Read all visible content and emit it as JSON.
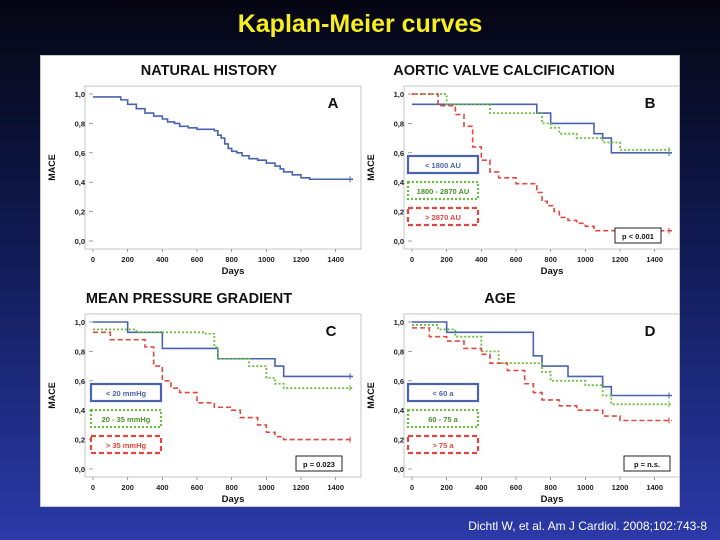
{
  "slide": {
    "title": "Kaplan-Meier curves",
    "citation": "Dichtl W, et al. Am J Cardiol. 2008;102:743-8"
  },
  "axis": {
    "xlabel": "Days",
    "ylabel": "MACE",
    "xticks": [
      "0",
      "200",
      "400",
      "600",
      "800",
      "1000",
      "1200",
      "1400"
    ],
    "yticks": [
      "0,0",
      "0,2",
      "0,4",
      "0,6",
      "0,8",
      "1,0"
    ]
  },
  "colors": {
    "blue": "#4a63b0",
    "green": "#6cbf3c",
    "red": "#e2463f",
    "black": "#333333"
  },
  "chart_data": [
    {
      "type": "line",
      "title": "NATURAL HISTORY",
      "panel_letter": "A",
      "xlabel": "Days",
      "ylabel": "MACE",
      "xlim": [
        0,
        1500
      ],
      "ylim": [
        0,
        1
      ],
      "series": [
        {
          "color": "blue",
          "x": [
            0,
            100,
            160,
            200,
            250,
            300,
            350,
            400,
            430,
            470,
            500,
            550,
            600,
            650,
            700,
            720,
            740,
            760,
            780,
            800,
            830,
            860,
            900,
            950,
            1000,
            1050,
            1080,
            1100,
            1150,
            1200,
            1250,
            1300,
            1350,
            1400,
            1450,
            1500
          ],
          "y": [
            0.98,
            0.98,
            0.96,
            0.93,
            0.9,
            0.87,
            0.85,
            0.83,
            0.81,
            0.8,
            0.78,
            0.77,
            0.76,
            0.76,
            0.75,
            0.72,
            0.7,
            0.66,
            0.63,
            0.61,
            0.6,
            0.58,
            0.56,
            0.55,
            0.53,
            0.51,
            0.49,
            0.47,
            0.45,
            0.43,
            0.42,
            0.42,
            0.42,
            0.42,
            0.42,
            0.42
          ]
        }
      ]
    },
    {
      "type": "line",
      "title": "AORTIC VALVE CALCIFICATION",
      "panel_letter": "B",
      "xlabel": "Days",
      "ylabel": "MACE",
      "xlim": [
        0,
        1500
      ],
      "ylim": [
        0,
        1
      ],
      "p_label": "p < 0.001",
      "series": [
        {
          "name": "< 1800 AU",
          "color": "blue",
          "x": [
            0,
            700,
            720,
            800,
            850,
            1000,
            1050,
            1100,
            1150,
            1500
          ],
          "y": [
            0.93,
            0.93,
            0.87,
            0.8,
            0.8,
            0.8,
            0.73,
            0.7,
            0.6,
            0.6
          ]
        },
        {
          "name": "1800 - 2870 AU",
          "color": "green",
          "x": [
            0,
            150,
            200,
            300,
            400,
            450,
            700,
            750,
            800,
            850,
            950,
            1100,
            1200,
            1500
          ],
          "y": [
            1.0,
            1.0,
            0.93,
            0.93,
            0.93,
            0.87,
            0.87,
            0.8,
            0.77,
            0.73,
            0.7,
            0.67,
            0.62,
            0.62
          ]
        },
        {
          "name": "> 2870 AU",
          "color": "red",
          "x": [
            0,
            100,
            150,
            250,
            300,
            350,
            400,
            450,
            500,
            600,
            700,
            720,
            750,
            780,
            820,
            850,
            900,
            950,
            1000,
            1050,
            1100,
            1500
          ],
          "y": [
            1.0,
            1.0,
            0.92,
            0.86,
            0.78,
            0.64,
            0.55,
            0.47,
            0.43,
            0.39,
            0.39,
            0.33,
            0.27,
            0.24,
            0.2,
            0.16,
            0.14,
            0.12,
            0.1,
            0.07,
            0.07,
            0.07
          ]
        }
      ]
    },
    {
      "type": "line",
      "title": "MEAN PRESSURE GRADIENT",
      "panel_letter": "C",
      "xlabel": "Days",
      "ylabel": "MACE",
      "xlim": [
        0,
        1500
      ],
      "ylim": [
        0,
        1
      ],
      "p_label": "p = 0.023",
      "series": [
        {
          "name": "< 20 mmHg",
          "color": "blue",
          "x": [
            0,
            150,
            200,
            400,
            700,
            720,
            900,
            1050,
            1100,
            1500
          ],
          "y": [
            1.0,
            1.0,
            0.93,
            0.82,
            0.82,
            0.75,
            0.75,
            0.7,
            0.63,
            0.63
          ]
        },
        {
          "name": "20 - 35 mmHg",
          "color": "green",
          "x": [
            0,
            250,
            400,
            650,
            700,
            720,
            900,
            1000,
            1050,
            1100,
            1200,
            1500
          ],
          "y": [
            0.95,
            0.93,
            0.93,
            0.92,
            0.83,
            0.75,
            0.7,
            0.62,
            0.58,
            0.55,
            0.55,
            0.55
          ]
        },
        {
          "name": "> 35 mmHg",
          "color": "red",
          "x": [
            0,
            100,
            200,
            300,
            350,
            400,
            450,
            500,
            600,
            700,
            800,
            850,
            950,
            1000,
            1050,
            1100,
            1200,
            1500
          ],
          "y": [
            0.93,
            0.88,
            0.88,
            0.83,
            0.7,
            0.6,
            0.55,
            0.52,
            0.45,
            0.42,
            0.4,
            0.35,
            0.3,
            0.25,
            0.22,
            0.2,
            0.2,
            0.2
          ]
        }
      ]
    },
    {
      "type": "line",
      "title": "AGE",
      "panel_letter": "D",
      "xlabel": "Days",
      "ylabel": "MACE",
      "xlim": [
        0,
        1500
      ],
      "ylim": [
        0,
        1
      ],
      "p_label": "p = n.s.",
      "series": [
        {
          "name": "< 60 a",
          "color": "blue",
          "x": [
            0,
            100,
            200,
            350,
            650,
            700,
            750,
            900,
            1100,
            1150,
            1500
          ],
          "y": [
            1.0,
            1.0,
            0.93,
            0.93,
            0.93,
            0.77,
            0.7,
            0.63,
            0.56,
            0.5,
            0.5
          ]
        },
        {
          "name": "60 - 75 a",
          "color": "green",
          "x": [
            0,
            150,
            250,
            400,
            500,
            700,
            750,
            800,
            1000,
            1100,
            1150,
            1500
          ],
          "y": [
            0.98,
            0.95,
            0.9,
            0.8,
            0.72,
            0.72,
            0.66,
            0.6,
            0.57,
            0.5,
            0.44,
            0.44
          ]
        },
        {
          "name": "> 75 a",
          "color": "red",
          "x": [
            0,
            100,
            200,
            300,
            400,
            450,
            550,
            650,
            700,
            750,
            850,
            950,
            1100,
            1200,
            1500
          ],
          "y": [
            0.96,
            0.9,
            0.87,
            0.82,
            0.78,
            0.72,
            0.67,
            0.58,
            0.52,
            0.47,
            0.43,
            0.4,
            0.36,
            0.33,
            0.33
          ]
        }
      ]
    }
  ]
}
